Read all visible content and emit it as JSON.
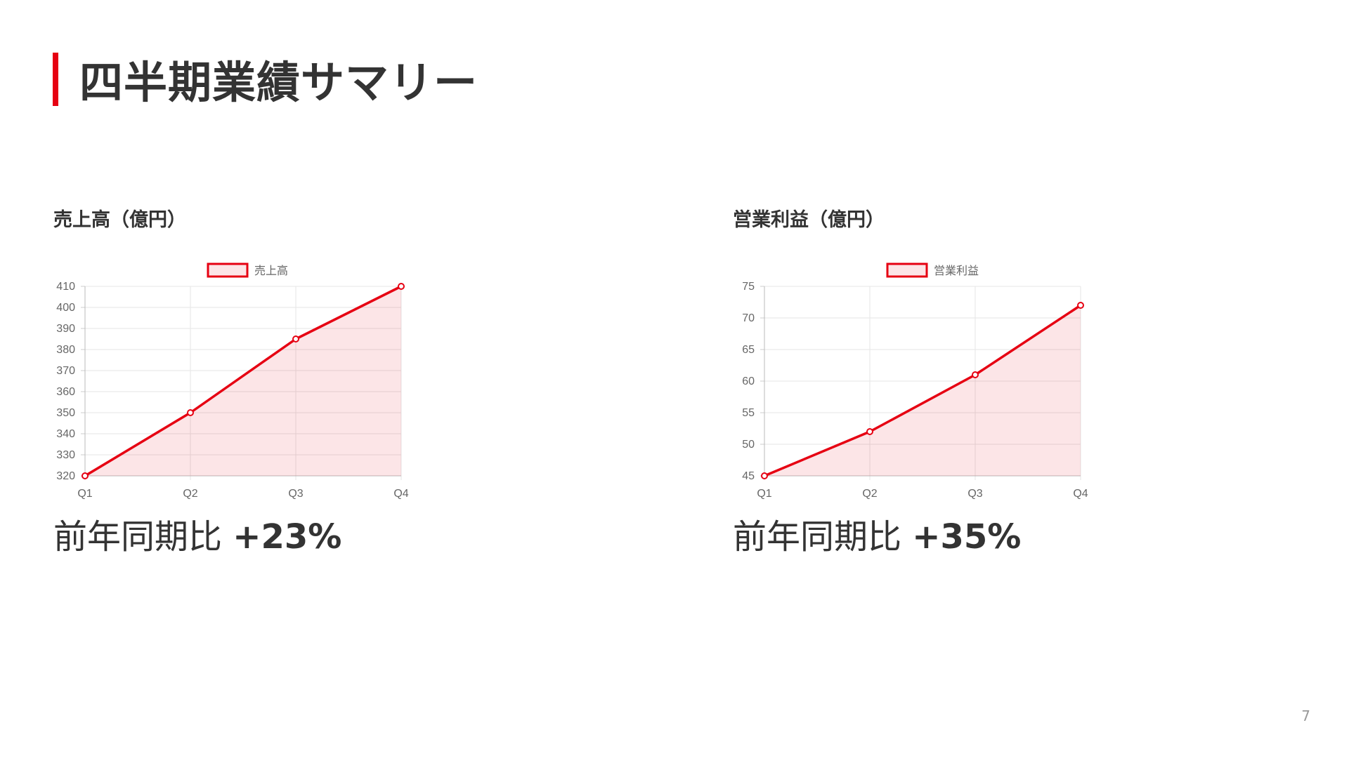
{
  "slide": {
    "title": "四半期業績サマリー",
    "page_number": "7",
    "accent_color": "#e60012"
  },
  "panels": [
    {
      "title": "売上高（億円）",
      "metric_prefix": "前年同期比",
      "metric_value": "+23%"
    },
    {
      "title": "営業利益（億円）",
      "metric_prefix": "前年同期比",
      "metric_value": "+35%"
    }
  ],
  "chart_data": [
    {
      "type": "area",
      "categories": [
        "Q1",
        "Q2",
        "Q3",
        "Q4"
      ],
      "series": [
        {
          "name": "売上高",
          "values": [
            320,
            350,
            385,
            410
          ]
        }
      ],
      "ylim": [
        320,
        410
      ],
      "y_ticks": [
        320,
        330,
        340,
        350,
        360,
        370,
        380,
        390,
        400,
        410
      ],
      "legend": "top-center",
      "grid": true,
      "line_color": "#e60012",
      "fill_color": "rgba(230,0,18,0.1)"
    },
    {
      "type": "area",
      "categories": [
        "Q1",
        "Q2",
        "Q3",
        "Q4"
      ],
      "series": [
        {
          "name": "営業利益",
          "values": [
            45,
            52,
            61,
            72
          ]
        }
      ],
      "ylim": [
        45,
        75
      ],
      "y_ticks": [
        45,
        50,
        55,
        60,
        65,
        70,
        75
      ],
      "legend": "top-center",
      "grid": true,
      "line_color": "#e60012",
      "fill_color": "rgba(230,0,18,0.1)"
    }
  ]
}
